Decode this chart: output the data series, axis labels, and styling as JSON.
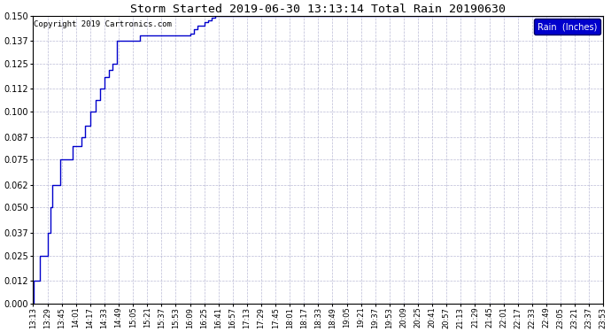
{
  "title": "Storm Started 2019-06-30 13:13:14 Total Rain 20190630",
  "copyright_text": "Copyright 2019 Cartronics.com",
  "legend_label": "Rain  (Inches)",
  "legend_facecolor": "#0000cc",
  "legend_textcolor": "#ffffff",
  "line_color": "#0000cc",
  "background_color": "#ffffff",
  "grid_color": "#aaaacc",
  "ylim": [
    0.0,
    0.15
  ],
  "yticks": [
    0.0,
    0.012,
    0.025,
    0.037,
    0.05,
    0.062,
    0.075,
    0.087,
    0.1,
    0.112,
    0.125,
    0.137,
    0.15
  ],
  "x_times": [
    "13:13",
    "13:29",
    "13:45",
    "14:01",
    "14:17",
    "14:33",
    "14:49",
    "15:05",
    "15:21",
    "15:37",
    "15:53",
    "16:09",
    "16:25",
    "16:41",
    "16:57",
    "17:13",
    "17:29",
    "17:45",
    "18:01",
    "18:17",
    "18:33",
    "18:49",
    "19:05",
    "19:21",
    "19:37",
    "19:53",
    "20:09",
    "20:25",
    "20:41",
    "20:57",
    "21:13",
    "21:29",
    "21:45",
    "22:01",
    "22:17",
    "22:33",
    "22:49",
    "23:05",
    "23:21",
    "23:37",
    "23:53"
  ],
  "data_x": [
    0,
    1,
    7,
    16,
    19,
    21,
    24,
    30,
    34,
    44,
    54,
    58,
    64,
    70,
    75,
    80,
    85,
    89,
    94,
    112,
    116,
    120,
    144,
    167,
    176,
    180,
    184,
    192,
    196,
    200,
    204,
    208,
    214,
    220,
    224,
    228,
    240,
    256,
    272,
    288,
    640
  ],
  "data_y": [
    0.0,
    0.012,
    0.025,
    0.037,
    0.05,
    0.062,
    0.062,
    0.075,
    0.075,
    0.082,
    0.087,
    0.093,
    0.1,
    0.106,
    0.112,
    0.118,
    0.122,
    0.125,
    0.137,
    0.137,
    0.137,
    0.14,
    0.14,
    0.14,
    0.141,
    0.143,
    0.145,
    0.147,
    0.148,
    0.149,
    0.15,
    0.15,
    0.15,
    0.15,
    0.15,
    0.15,
    0.15,
    0.15,
    0.15,
    0.15,
    0.15
  ]
}
